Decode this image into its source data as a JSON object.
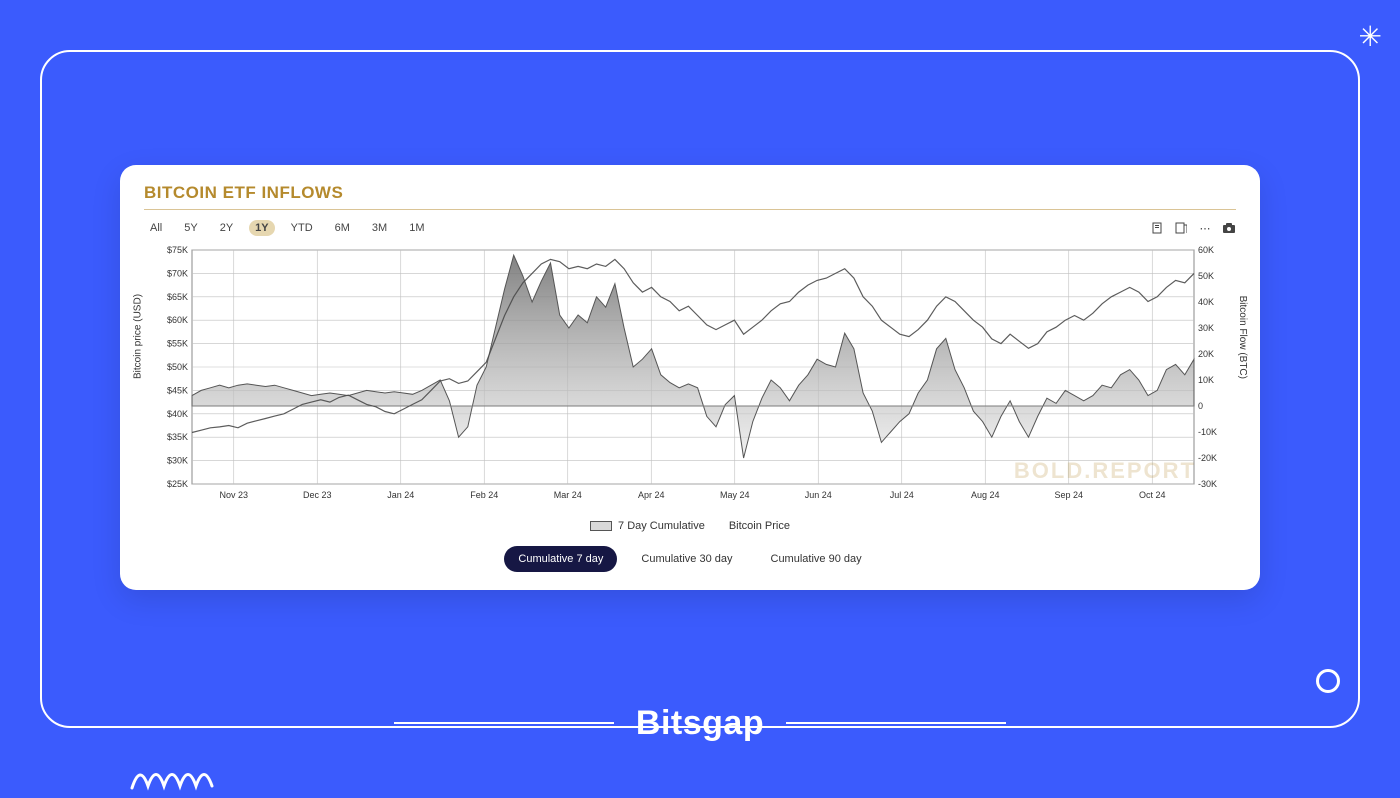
{
  "page": {
    "bg_color": "#3b5bfd",
    "frame_border_color": "#ffffff",
    "brand": "Bitsgap"
  },
  "card": {
    "title": "BITCOIN ETF INFLOWS",
    "title_color": "#b58a2d",
    "watermark": "BOLD.REPORT",
    "ranges": [
      "All",
      "5Y",
      "2Y",
      "1Y",
      "YTD",
      "6M",
      "3M",
      "1M"
    ],
    "range_active": "1Y",
    "tool_icons": [
      "download-icon",
      "export-icon",
      "more-icon",
      "camera-icon"
    ],
    "cumulative_options": [
      "Cumulative 7 day",
      "Cumulative 30 day",
      "Cumulative 90 day"
    ],
    "cumulative_active": "Cumulative 7 day",
    "legend": {
      "series1": "7 Day Cumulative",
      "series2": "Bitcoin Price"
    }
  },
  "chart": {
    "type": "dual-axis-line-area",
    "background_color": "#ffffff",
    "grid_color": "#bfbfbf",
    "axis_text_color": "#333333",
    "tick_fontsize": 9,
    "label_fontsize": 10,
    "left_axis": {
      "label": "Bitcoin price (USD)",
      "min": 25000,
      "max": 75000,
      "step": 5000,
      "tick_labels": [
        "$25K",
        "$30K",
        "$35K",
        "$40K",
        "$45K",
        "$50K",
        "$55K",
        "$60K",
        "$65K",
        "$70K",
        "$75K"
      ]
    },
    "right_axis": {
      "label": "Bitcoin Flow (BTC)",
      "min": -30000,
      "max": 60000,
      "step": 10000,
      "tick_labels": [
        "-30K",
        "-20K",
        "-10K",
        "0",
        "10K",
        "20K",
        "30K",
        "40K",
        "50K",
        "60K"
      ]
    },
    "x_axis": {
      "labels": [
        "Nov 23",
        "Dec 23",
        "Jan 24",
        "Feb 24",
        "Mar 24",
        "Apr 24",
        "May 24",
        "Jun 24",
        "Jul 24",
        "Aug 24",
        "Sep 24",
        "Oct 24"
      ]
    },
    "flow_series": {
      "fill_top": "#6c6c6c",
      "fill_bottom": "#e5e5e5",
      "stroke": "#555555",
      "stroke_width": 1,
      "baseline": 0,
      "values": [
        4000,
        6000,
        7000,
        8000,
        7000,
        8000,
        8500,
        8000,
        7500,
        8000,
        7000,
        6000,
        5000,
        4000,
        4500,
        5000,
        4500,
        4000,
        5000,
        6000,
        5500,
        5000,
        5500,
        5000,
        4500,
        6000,
        8000,
        10000,
        2000,
        -12000,
        -8000,
        8000,
        15000,
        30000,
        45000,
        58000,
        50000,
        40000,
        48000,
        55000,
        35000,
        30000,
        35000,
        32000,
        42000,
        38000,
        47000,
        30000,
        15000,
        18000,
        22000,
        12000,
        9000,
        7000,
        8500,
        7000,
        -4000,
        -8000,
        500,
        4000,
        -20000,
        -6000,
        3000,
        10000,
        7000,
        2000,
        8000,
        12000,
        18000,
        16000,
        15000,
        28000,
        22000,
        5000,
        -2000,
        -14000,
        -10000,
        -6000,
        -3000,
        5000,
        10000,
        22000,
        26000,
        14000,
        7000,
        -2000,
        -6000,
        -12000,
        -4000,
        2000,
        -6000,
        -12000,
        -4000,
        3000,
        1000,
        6000,
        4000,
        2000,
        4000,
        8000,
        7000,
        12000,
        14000,
        10000,
        4000,
        6000,
        14000,
        16000,
        12000,
        18000
      ]
    },
    "price_series": {
      "stroke": "#4a4a4a",
      "stroke_width": 1.2,
      "values": [
        36000,
        36500,
        37000,
        37200,
        37500,
        37000,
        38000,
        38500,
        39000,
        39500,
        40000,
        41000,
        42000,
        42500,
        43000,
        42500,
        43500,
        44000,
        43000,
        42000,
        41500,
        40500,
        40000,
        41000,
        42000,
        43000,
        45000,
        47000,
        47500,
        46500,
        47000,
        49000,
        51000,
        56000,
        61000,
        65000,
        68000,
        70000,
        72000,
        73000,
        72500,
        71000,
        71500,
        71000,
        72000,
        71500,
        73000,
        71000,
        68000,
        66000,
        67000,
        65000,
        64000,
        62000,
        63000,
        61000,
        59000,
        58000,
        59000,
        60000,
        57000,
        58500,
        60000,
        62000,
        63500,
        64000,
        66000,
        67500,
        68500,
        69000,
        70000,
        71000,
        69000,
        65000,
        63000,
        60000,
        58500,
        57000,
        56500,
        58000,
        60000,
        63000,
        65000,
        64000,
        62000,
        60000,
        58500,
        56000,
        55000,
        57000,
        55500,
        54000,
        55000,
        57500,
        58500,
        60000,
        61000,
        60000,
        61500,
        63500,
        65000,
        66000,
        67000,
        66000,
        64000,
        65000,
        67000,
        68500,
        68000,
        70000
      ]
    }
  }
}
